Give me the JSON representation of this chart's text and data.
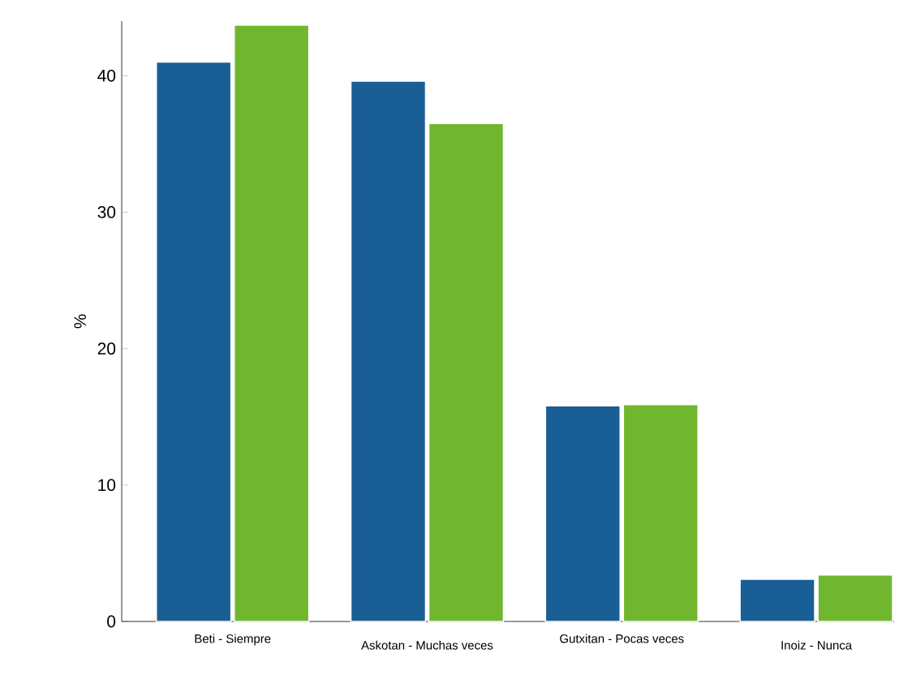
{
  "chart_data": {
    "type": "bar",
    "ylabel": "%",
    "categories": [
      "Beti - Siempre",
      "Askotan - Muchas veces",
      "Gutxitan - Pocas veces",
      "Inoiz - Nunca"
    ],
    "series": [
      {
        "color": "#1a5e96",
        "values": [
          41.0,
          39.6,
          15.8,
          3.1
        ]
      },
      {
        "color": "#71b62f",
        "values": [
          43.7,
          36.5,
          15.9,
          3.4
        ]
      }
    ],
    "ylim": [
      0,
      44
    ],
    "yticks": [
      0,
      10,
      20,
      30,
      40
    ],
    "grid": false
  }
}
